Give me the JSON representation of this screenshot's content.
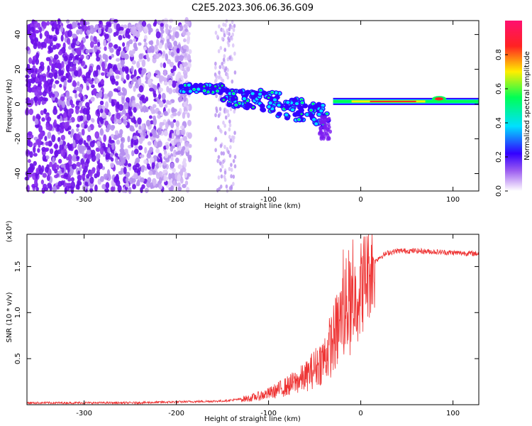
{
  "figure_title": "C2E5.2023.306.06.36.G09",
  "colors": {
    "snr_line": "#ee3333",
    "colormap": [
      "#ffffff",
      "#e8d6fb",
      "#b58ef0",
      "#7a1af0",
      "#3300ff",
      "#00e0ff",
      "#00ff55",
      "#ffee00",
      "#ff2222",
      "#ff1070"
    ]
  },
  "chart_data": [
    {
      "type": "heatmap",
      "title": "C2E5.2023.306.06.36.G09",
      "xlabel": "Height of straight line (km)",
      "ylabel": "Frequency (Hz)",
      "xlim": [
        -362,
        128
      ],
      "ylim": [
        -50,
        48
      ],
      "x_ticks": [
        -300,
        -200,
        -100,
        0,
        100
      ],
      "y_ticks": [
        -40,
        -20,
        0,
        20,
        40
      ],
      "colorbar": {
        "label": "Normalized spectral amplitude",
        "range": [
          0,
          1
        ],
        "ticks": [
          "0.0",
          "0.2",
          "0.4",
          "0.6",
          "0.8"
        ]
      },
      "features": [
        {
          "name": "noise",
          "x_range": [
            -362,
            -185
          ],
          "freq_range": [
            -50,
            48
          ],
          "amplitude": 0.15
        },
        {
          "name": "tone",
          "x_range": [
            -30,
            128
          ],
          "frequency": 1.5,
          "amplitude": 0.85
        }
      ]
    },
    {
      "type": "line",
      "xlabel": "Height of straight line (km)",
      "ylabel": "SNR (10 * v/v)",
      "y_multiplier": "(x10⁴)",
      "xlim": [
        -362,
        128
      ],
      "ylim": [
        0,
        1.85
      ],
      "x_ticks": [
        -300,
        -200,
        -100,
        0,
        100
      ],
      "y_ticks": [
        0.5,
        1.0,
        1.5
      ],
      "y_tick_labels": [
        "0.5",
        "1.0",
        "1.5"
      ],
      "series": [
        {
          "x": [
            -362,
            -300,
            -250,
            -200,
            -150,
            -120,
            -100,
            -80,
            -60,
            -40,
            -30,
            -20,
            -14,
            -10,
            -5,
            0,
            5,
            10,
            15,
            20,
            30,
            40,
            60,
            80,
            100,
            128
          ],
          "y": [
            0.02,
            0.02,
            0.02,
            0.03,
            0.04,
            0.07,
            0.12,
            0.2,
            0.3,
            0.5,
            0.7,
            0.95,
            1.1,
            1.0,
            1.2,
            1.25,
            1.4,
            1.48,
            1.55,
            1.6,
            1.65,
            1.67,
            1.67,
            1.66,
            1.65,
            1.64
          ]
        }
      ]
    }
  ]
}
